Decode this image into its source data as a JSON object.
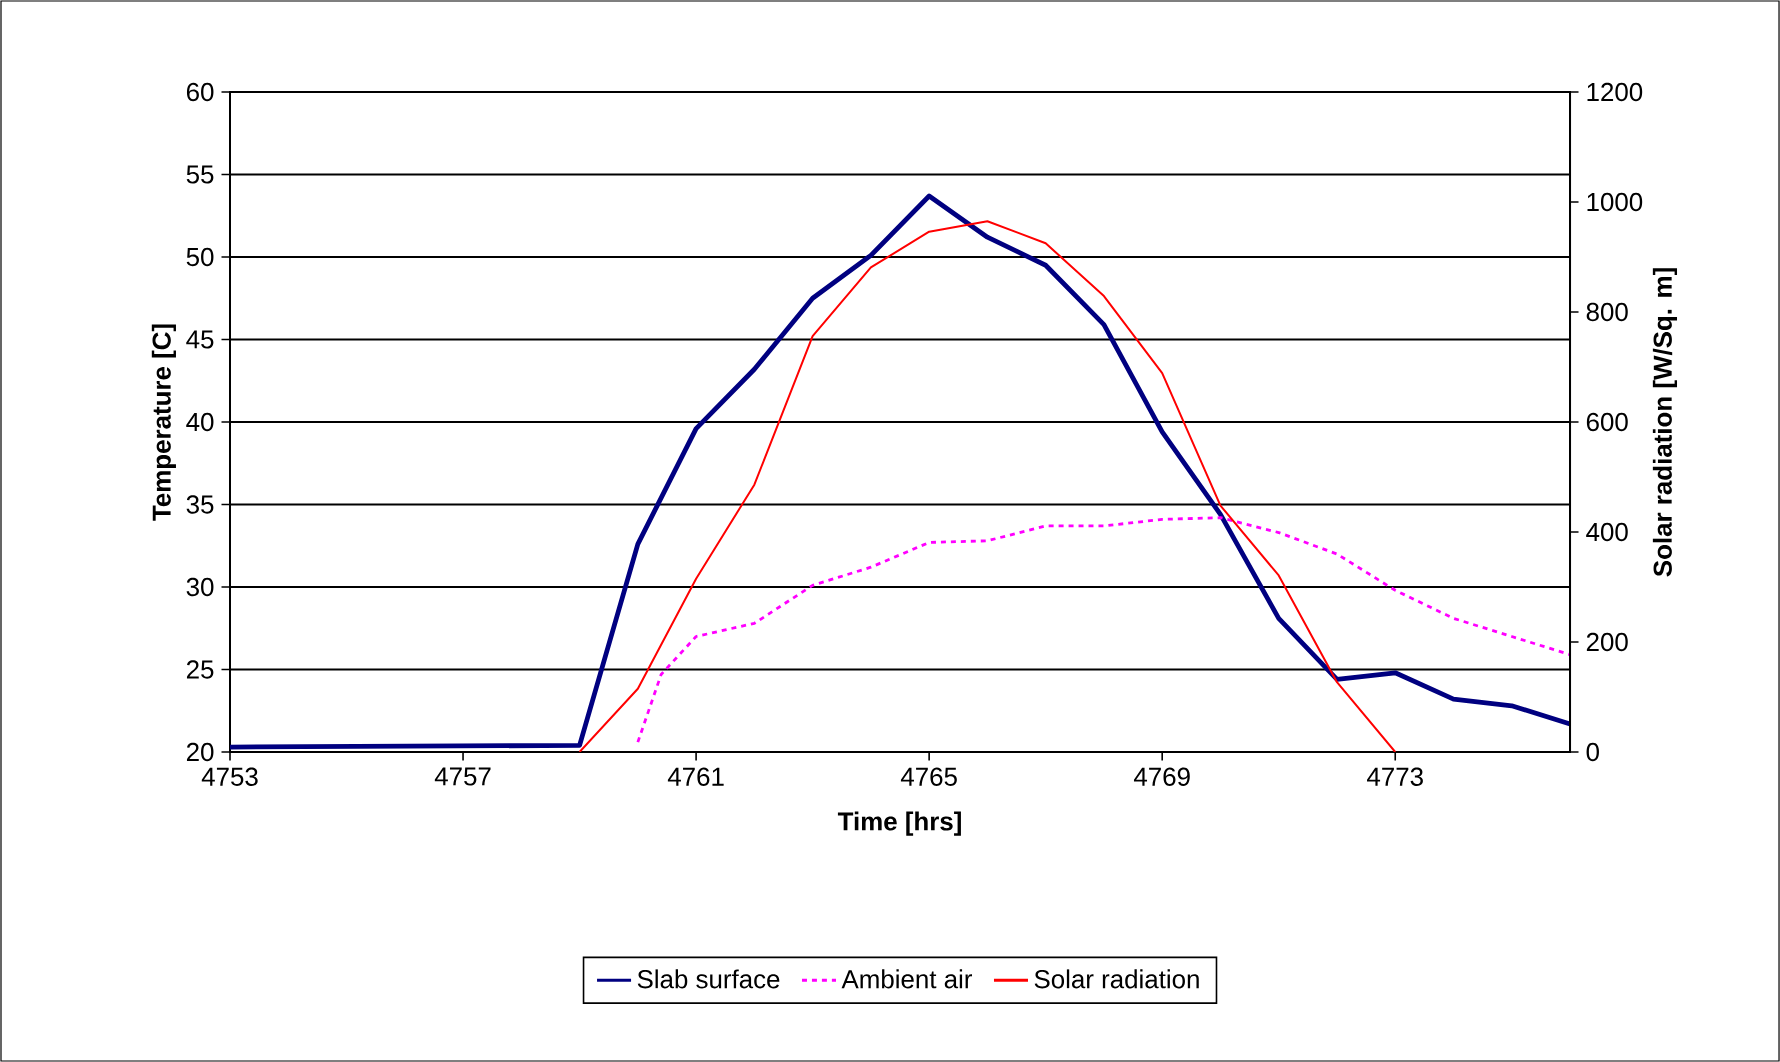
{
  "chart_data": {
    "type": "line",
    "xlabel": "Time [hrs]",
    "ylabel": "Temperature [C]",
    "y2label": "Solar radiation [W/Sq. m]",
    "xlim": [
      4753,
      4776
    ],
    "xticks": [
      4753,
      4757,
      4761,
      4765,
      4769,
      4773
    ],
    "ylim": [
      20,
      60
    ],
    "yticks": [
      20,
      25,
      30,
      35,
      40,
      45,
      50,
      55,
      60
    ],
    "y2lim": [
      0,
      1200
    ],
    "y2ticks": [
      0,
      200,
      400,
      600,
      800,
      1000,
      1200
    ],
    "grid": "y",
    "legend": "bottom",
    "marker": "none",
    "series": [
      {
        "name": "Slab surface",
        "color": "#000080",
        "line_style": "solid",
        "x": [
          4753,
          4759,
          4760,
          4761,
          4762,
          4763,
          4764,
          4765,
          4766,
          4767,
          4768,
          4769,
          4770,
          4771,
          4772,
          4773,
          4774,
          4775,
          4776
        ],
        "values": [
          20.3,
          20.4,
          32.6,
          39.6,
          43.2,
          47.5,
          50.1,
          53.7,
          51.2,
          49.5,
          45.9,
          39.4,
          34.4,
          28.1,
          24.4,
          24.8,
          23.2,
          22.8,
          21.7
        ]
      },
      {
        "name": "Ambient air",
        "color": "#ff00ff",
        "line_style": "dotted",
        "x": [
          4760,
          4760.4,
          4761,
          4762,
          4763,
          4764,
          4765,
          4766,
          4767,
          4768,
          4769,
          4770,
          4771,
          4772,
          4773,
          4774,
          4775,
          4776
        ],
        "values": [
          20.6,
          24.7,
          27.0,
          27.8,
          30.1,
          31.2,
          32.7,
          32.8,
          33.7,
          33.7,
          34.1,
          34.2,
          33.3,
          32.0,
          29.8,
          28.1,
          27.0,
          25.9
        ]
      },
      {
        "name": "Solar radiation",
        "color": "#ff0000",
        "line_style": "solid",
        "axis": "y2",
        "x": [
          4759,
          4760,
          4761,
          4762,
          4763,
          4764,
          4765,
          4766,
          4767,
          4768,
          4769,
          4770,
          4771,
          4772,
          4773
        ],
        "values": [
          0,
          115,
          315,
          486,
          756,
          881,
          946,
          965,
          925,
          829,
          689,
          448,
          321,
          127,
          0
        ]
      }
    ]
  }
}
